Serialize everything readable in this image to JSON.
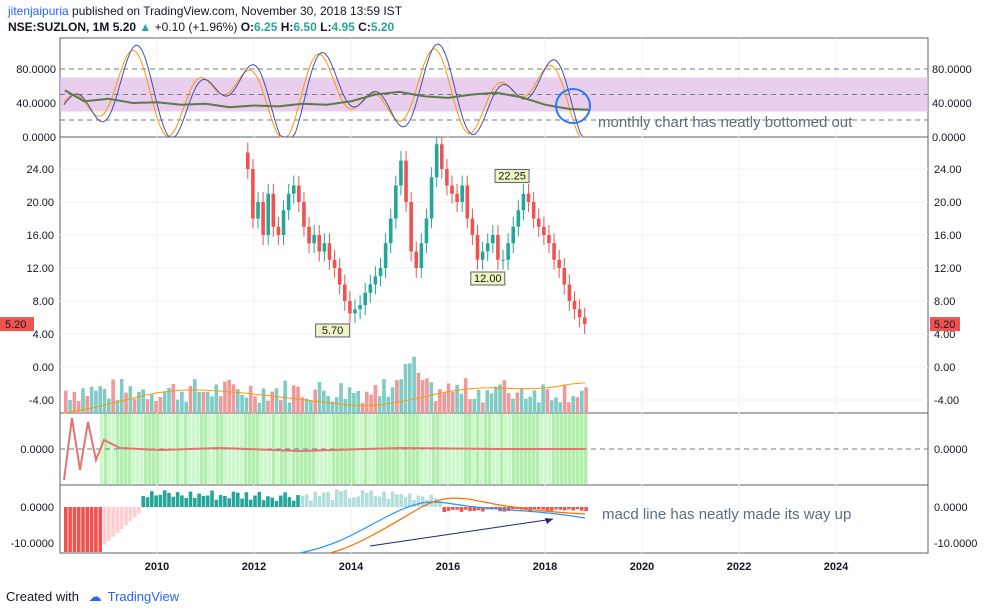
{
  "header": {
    "user": "jitenjaipuria",
    "published": " published on TradingView.com, November 30, 2018 13:59 IST",
    "symbol": "NSE:SUZLON, 1M",
    "price": "5.20",
    "arrow": "▲",
    "change": "+0.10 (+1.96%)",
    "open_label": "O:",
    "open": "6.25",
    "high_label": "H:",
    "high": "6.50",
    "low_label": "L:",
    "low": "4.95",
    "close_label": "C:",
    "close": "5.20"
  },
  "footer": {
    "created_with": "Created with",
    "brand": "TradingView"
  },
  "colors": {
    "up": "#26a69a",
    "down": "#ef5350",
    "rsi_band": "#e1bee7",
    "macd": "#2196f3",
    "signal": "#ff6d00"
  },
  "annotations": {
    "rsi_note": "monthly chart has neatly bottomed out",
    "macd_note": "macd line has neatly made its way up"
  },
  "chart_data": [
    {
      "type": "line",
      "panel": "stochastic-rsi",
      "yticks": [
        "80.0000",
        "40.0000",
        "0.0000"
      ],
      "ylim": [
        0,
        100
      ],
      "band": [
        30,
        70
      ],
      "series": [
        {
          "x": [
            2008.1,
            2008.5,
            2009.0,
            2009.5,
            2010.0,
            2010.5,
            2011.0,
            2011.5,
            2012.0,
            2012.5,
            2013.0,
            2013.5,
            2014.0,
            2014.5,
            2015.0,
            2015.5,
            2016.0,
            2016.5,
            2017.0,
            2017.5,
            2018.0,
            2018.5,
            2018.9
          ],
          "values": [
            55,
            42,
            45,
            40,
            41,
            38,
            39,
            35,
            37,
            36,
            39,
            38,
            42,
            50,
            53,
            48,
            46,
            50,
            52,
            47,
            38,
            33,
            32
          ]
        }
      ]
    },
    {
      "type": "candlestick",
      "panel": "price",
      "yticks": [
        "24.00",
        "20.00",
        "16.00",
        "12.00",
        "8.00",
        "4.00",
        "0.00",
        "-4.00"
      ],
      "ylim": [
        -6,
        28
      ],
      "last_price": "5.20",
      "labels": [
        {
          "x": 2017.3,
          "y": 22.25,
          "text": "22.25"
        },
        {
          "x": 2016.8,
          "y": 12.0,
          "text": "12.00"
        },
        {
          "x": 2013.6,
          "y": 5.7,
          "text": "5.70"
        }
      ],
      "close": [
        {
          "x": 2012.0,
          "values": [
            24,
            18,
            20,
            16,
            21,
            17,
            16,
            19,
            21,
            22,
            20,
            17,
            15,
            16,
            14,
            15,
            13,
            12,
            10,
            8,
            6.5,
            7,
            7.5,
            9,
            10,
            11,
            12,
            15,
            18,
            22,
            25,
            20,
            14,
            12,
            15,
            18,
            23,
            27,
            24,
            22,
            21,
            20,
            22,
            18,
            16,
            13,
            14,
            15,
            16,
            13,
            13,
            15,
            17,
            19,
            21,
            20,
            18,
            17,
            16,
            15,
            13,
            12,
            10,
            8,
            7,
            6,
            5.2
          ]
        }
      ]
    },
    {
      "type": "area",
      "panel": "oscillator",
      "yticks": [
        "0.0000"
      ],
      "ylim": [
        -1,
        1
      ]
    },
    {
      "type": "line",
      "panel": "macd",
      "yticks": [
        "0.0000",
        "-10.0000"
      ],
      "ylim": [
        -12,
        2
      ]
    }
  ],
  "xaxis": {
    "ticks": [
      "2010",
      "2012",
      "2014",
      "2016",
      "2018",
      "2020",
      "2022",
      "2024"
    ]
  }
}
